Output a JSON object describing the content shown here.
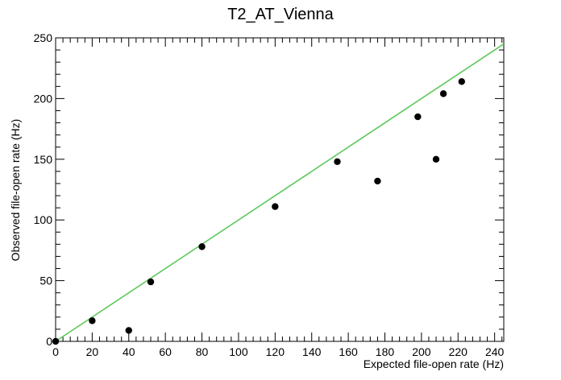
{
  "chart_data": {
    "type": "scatter",
    "title": "T2_AT_Vienna",
    "xlabel": "Expected file-open rate (Hz)",
    "ylabel": "Observed file-open rate (Hz)",
    "xlim": [
      0,
      245
    ],
    "ylim": [
      0,
      250
    ],
    "x_ticks": [
      "0",
      "20",
      "40",
      "60",
      "80",
      "100",
      "120",
      "140",
      "160",
      "180",
      "200",
      "220",
      "240"
    ],
    "y_ticks": [
      "0",
      "50",
      "100",
      "150",
      "200",
      "250"
    ],
    "points": [
      {
        "x": 0,
        "y": 0
      },
      {
        "x": 20,
        "y": 17
      },
      {
        "x": 40,
        "y": 9
      },
      {
        "x": 52,
        "y": 49
      },
      {
        "x": 80,
        "y": 78
      },
      {
        "x": 120,
        "y": 111
      },
      {
        "x": 154,
        "y": 148
      },
      {
        "x": 176,
        "y": 132
      },
      {
        "x": 198,
        "y": 185
      },
      {
        "x": 208,
        "y": 150
      },
      {
        "x": 212,
        "y": 204
      },
      {
        "x": 222,
        "y": 214
      }
    ],
    "reference_line": {
      "x": [
        0,
        245
      ],
      "y": [
        0,
        245
      ],
      "color": "#5cc85c"
    },
    "marker_color": "#000000",
    "grid": false
  }
}
